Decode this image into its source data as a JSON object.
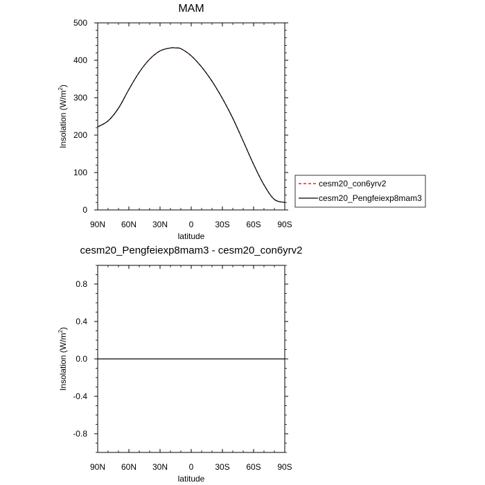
{
  "chart_data": [
    {
      "type": "line",
      "title": "MAM",
      "xlabel": "latitude",
      "ylabel": "Insolation (W/m²)",
      "ylabel_base": "Insolation (W/m",
      "ylabel_sup": "2",
      "ylabel_end": ")",
      "x_tick_values": [
        90,
        60,
        30,
        0,
        -30,
        -60,
        -90
      ],
      "x_tick_labels": [
        "90N",
        "60N",
        "30N",
        "0",
        "30S",
        "60S",
        "90S"
      ],
      "xlim": [
        90,
        -90
      ],
      "ylim": [
        0,
        500
      ],
      "y_tick_values": [
        0,
        100,
        200,
        300,
        400,
        500
      ],
      "y_tick_labels": [
        "0",
        "100",
        "200",
        "300",
        "400",
        "500"
      ],
      "grid": false,
      "legend_position": "right",
      "series": [
        {
          "name": "cesm20_con6yrv2",
          "color": "#cc0000",
          "dash": "dashed",
          "x": [
            90,
            80,
            70,
            60,
            50,
            40,
            30,
            20,
            15,
            10,
            0,
            -10,
            -20,
            -30,
            -40,
            -50,
            -60,
            -70,
            -80,
            -90
          ],
          "y": [
            222,
            238,
            272,
            322,
            368,
            403,
            425,
            433,
            433,
            431,
            412,
            382,
            344,
            298,
            245,
            184,
            122,
            67,
            28,
            20
          ]
        },
        {
          "name": "cesm20_Pengfeiexp8mam3",
          "color": "#000000",
          "dash": "solid",
          "x": [
            90,
            80,
            70,
            60,
            50,
            40,
            30,
            20,
            15,
            10,
            0,
            -10,
            -20,
            -30,
            -40,
            -50,
            -60,
            -70,
            -80,
            -90
          ],
          "y": [
            222,
            238,
            272,
            322,
            368,
            403,
            425,
            433,
            433,
            431,
            412,
            382,
            344,
            298,
            245,
            184,
            122,
            67,
            28,
            20
          ]
        }
      ]
    },
    {
      "type": "line",
      "title": "cesm20_Pengfeiexp8mam3 - cesm20_con6yrv2",
      "xlabel": "latitude",
      "ylabel": "Insolation (W/m²)",
      "ylabel_base": "Insolation (W/m",
      "ylabel_sup": "2",
      "ylabel_end": ")",
      "x_tick_values": [
        90,
        60,
        30,
        0,
        -30,
        -60,
        -90
      ],
      "x_tick_labels": [
        "90N",
        "60N",
        "30N",
        "0",
        "30S",
        "60S",
        "90S"
      ],
      "xlim": [
        90,
        -90
      ],
      "ylim": [
        -1,
        1
      ],
      "y_tick_values": [
        -0.8,
        -0.4,
        0.0,
        0.4,
        0.8
      ],
      "y_tick_labels": [
        "-0.8",
        "-0.4",
        "0.0",
        "0.4",
        "0.8"
      ],
      "grid": false,
      "series": [
        {
          "color": "#000000",
          "dash": "solid",
          "x": [
            90,
            -90
          ],
          "y": [
            0,
            0
          ]
        }
      ]
    }
  ]
}
